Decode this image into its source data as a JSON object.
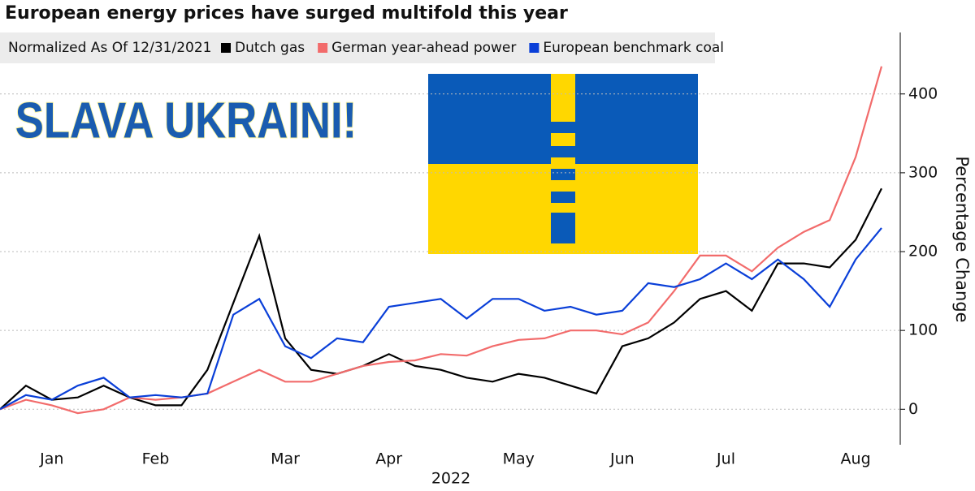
{
  "chart_data": {
    "type": "line",
    "title": "European energy prices have surged multifold this year",
    "legend_title": "Normalized As Of 12/31/2021",
    "annotation": "SLAVA UKRAINI!",
    "xlabel": "2022",
    "ylabel": "Percentage Change",
    "categories": [
      null,
      null,
      "Jan",
      null,
      null,
      null,
      "Feb",
      null,
      null,
      null,
      null,
      "Mar",
      null,
      null,
      null,
      "Apr",
      null,
      null,
      null,
      null,
      "May",
      null,
      null,
      null,
      "Jun",
      null,
      null,
      null,
      "Jul",
      null,
      null,
      null,
      null,
      "Aug",
      null
    ],
    "series": [
      {
        "name": "Dutch gas",
        "color": "#000000",
        "values": [
          0,
          30,
          12,
          15,
          30,
          15,
          5,
          5,
          50,
          135,
          220,
          90,
          50,
          45,
          55,
          70,
          55,
          50,
          40,
          35,
          45,
          40,
          30,
          20,
          80,
          90,
          110,
          140,
          150,
          125,
          185,
          185,
          180,
          215,
          280
        ]
      },
      {
        "name": "German year-ahead power",
        "color": "#f26b6b",
        "values": [
          0,
          12,
          5,
          -5,
          0,
          15,
          12,
          15,
          20,
          35,
          50,
          35,
          35,
          45,
          55,
          60,
          62,
          70,
          68,
          80,
          88,
          90,
          100,
          100,
          95,
          110,
          150,
          195,
          195,
          175,
          205,
          225,
          240,
          320,
          435
        ]
      },
      {
        "name": "European benchmark coal",
        "color": "#0a3fd8",
        "values": [
          0,
          18,
          12,
          30,
          40,
          15,
          18,
          15,
          20,
          120,
          140,
          80,
          65,
          90,
          85,
          130,
          135,
          140,
          115,
          140,
          140,
          125,
          130,
          120,
          125,
          160,
          155,
          165,
          185,
          165,
          190,
          165,
          130,
          190,
          230
        ]
      }
    ],
    "ylim": [
      -45,
      478
    ],
    "yticks": [
      0,
      100,
      200,
      300,
      400
    ],
    "grid": true
  }
}
